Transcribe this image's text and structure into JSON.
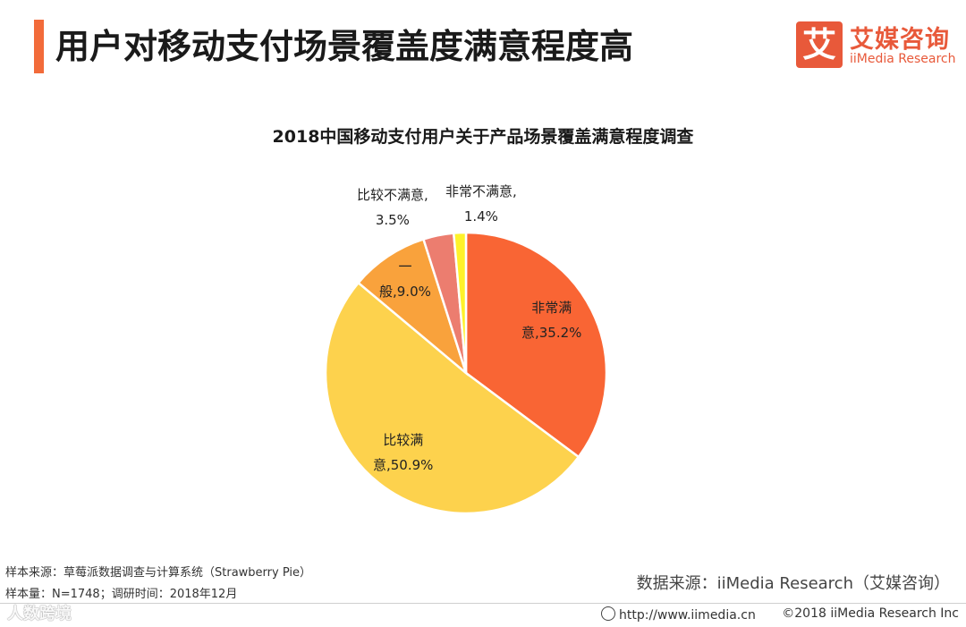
{
  "header": {
    "title": "用户对移动支付场景覆盖度满意程度高",
    "accent_color": "#f26b3a"
  },
  "logo": {
    "mark": "艾",
    "name_cn": "艾媒咨询",
    "name_en": "iiMedia Research",
    "brand_color": "#e8593a"
  },
  "chart_data": {
    "type": "pie",
    "title": "2018中国移动支付用户关于产品场景覆盖满意程度调查",
    "slices": [
      {
        "label_line1": "非常满",
        "label_line2": "意,35.2%",
        "value": 35.2,
        "color": "#f96534"
      },
      {
        "label_line1": "比较满",
        "label_line2": "意,50.9%",
        "value": 50.9,
        "color": "#fdd24d"
      },
      {
        "label_line1": "一",
        "label_line2": "般,9.0%",
        "value": 9.0,
        "color": "#f9a23c"
      },
      {
        "label_line1": "比较不满意,",
        "label_line2": "3.5%",
        "value": 3.5,
        "color": "#ec7d6f"
      },
      {
        "label_line1": "非常不满意,",
        "label_line2": "1.4%",
        "value": 1.4,
        "color": "#fef22a"
      }
    ],
    "start_angle": "12 o'clock",
    "direction": "clockwise"
  },
  "footer": {
    "source_left": "样本来源：草莓派数据调查与计算系统（Strawberry  Pie）",
    "sample_size": "样本量：N=1748；调研时间：2018年12月",
    "source_right": "数据来源：iiMedia Research（艾媒咨询）",
    "url": "http://www.iimedia.cn",
    "copyright": "©2018  iiMedia Research  Inc",
    "watermark": "人数跨境"
  }
}
